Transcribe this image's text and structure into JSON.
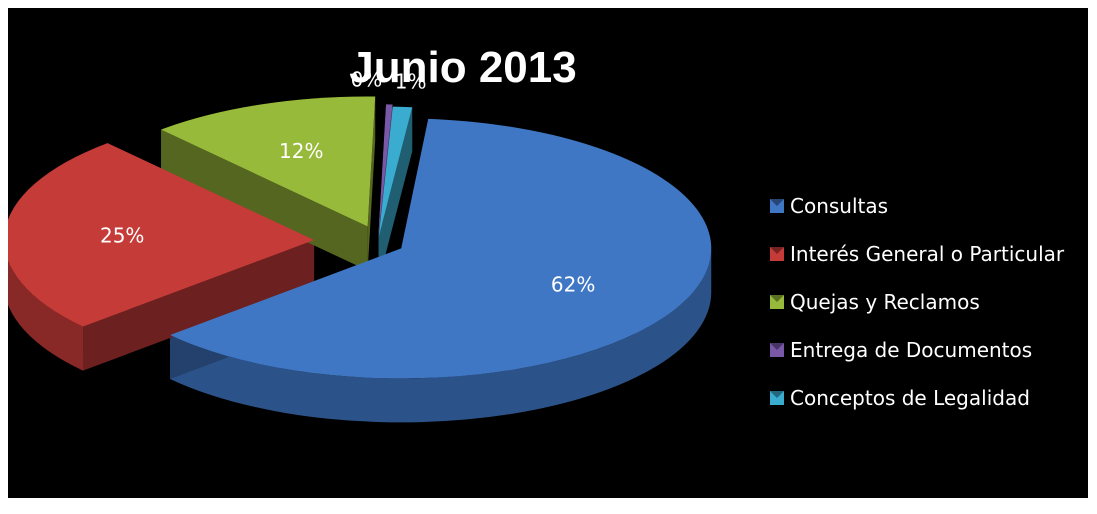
{
  "chart_data": {
    "type": "pie",
    "style": "3d-exploded",
    "title": "Junio 2013",
    "legend_position": "right",
    "background": "#000000",
    "slices": [
      {
        "label": "Consultas",
        "percent": 62,
        "percent_label": "62%",
        "color": "#3f77c4"
      },
      {
        "label": "Interés General o Particular",
        "percent": 25,
        "percent_label": "25%",
        "color": "#c43b38"
      },
      {
        "label": "Quejas y Reclamos",
        "percent": 12,
        "percent_label": "12%",
        "color": "#98ba3a"
      },
      {
        "label": "Entrega de Documentos",
        "percent": 0,
        "percent_label": "0%",
        "color": "#7a58a8"
      },
      {
        "label": "Conceptos de Legalidad",
        "percent": 1,
        "percent_label": "1%",
        "color": "#3aacd0"
      }
    ]
  }
}
